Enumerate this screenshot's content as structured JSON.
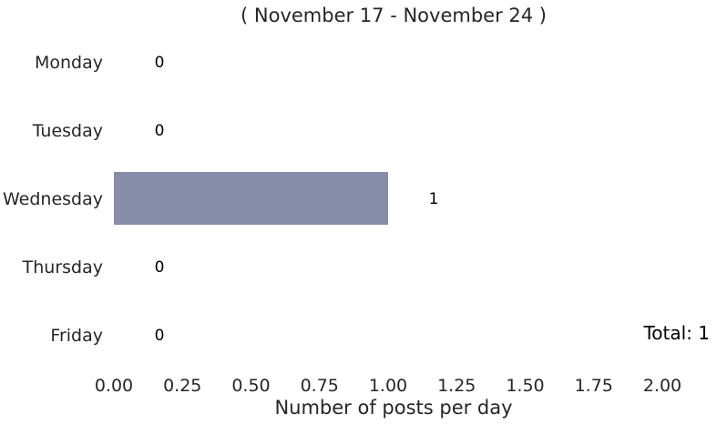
{
  "chart_data": {
    "type": "bar",
    "orientation": "horizontal",
    "title": "( November 17 - November 24 )",
    "xlabel": "Number of posts per day",
    "ylabel": "",
    "categories": [
      "Monday",
      "Tuesday",
      "Wednesday",
      "Thursday",
      "Friday"
    ],
    "values": [
      0,
      0,
      1,
      0,
      0
    ],
    "data_labels": [
      "0",
      "0",
      "1",
      "0",
      "0"
    ],
    "xlim": [
      0,
      2.0
    ],
    "x_ticks": [
      "0.00",
      "0.25",
      "0.50",
      "0.75",
      "1.00",
      "1.25",
      "1.50",
      "1.75",
      "2.00"
    ],
    "bar_color": "#878ca8",
    "grid": false,
    "annotation": "Total: 1"
  }
}
